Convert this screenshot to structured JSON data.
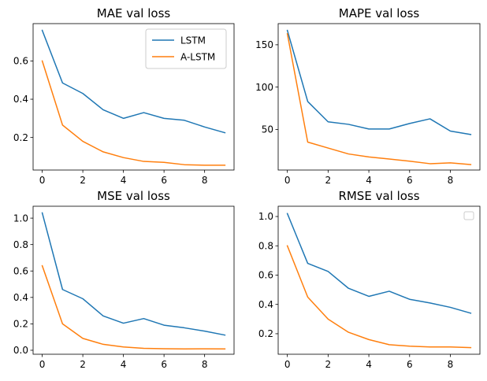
{
  "chart_data": [
    {
      "type": "line",
      "title": "MAE val loss",
      "x": [
        0,
        1,
        2,
        3,
        4,
        5,
        6,
        7,
        8,
        9
      ],
      "xlim": [
        -0.45,
        9.45
      ],
      "ylim": [
        0.03,
        0.795
      ],
      "xticks": [
        0,
        2,
        4,
        6,
        8
      ],
      "xtick_labels": [
        "0",
        "2",
        "4",
        "6",
        "8"
      ],
      "yticks": [
        0.2,
        0.4,
        0.6
      ],
      "ytick_labels": [
        "0.2",
        "0.4",
        "0.6"
      ],
      "series": [
        {
          "name": "LSTM",
          "color": "#1f77b4",
          "values": [
            0.76,
            0.485,
            0.43,
            0.345,
            0.3,
            0.33,
            0.3,
            0.29,
            0.255,
            0.225
          ]
        },
        {
          "name": "A-LSTM",
          "color": "#ff7f0e",
          "values": [
            0.6,
            0.265,
            0.18,
            0.125,
            0.095,
            0.075,
            0.07,
            0.058,
            0.055,
            0.055
          ]
        }
      ],
      "legend": {
        "placement": "top-right",
        "frame": true,
        "entries": [
          "LSTM",
          "A-LSTM"
        ]
      }
    },
    {
      "type": "line",
      "title": "MAPE val loss",
      "x": [
        0,
        1,
        2,
        3,
        4,
        5,
        6,
        7,
        8,
        9
      ],
      "xlim": [
        -0.45,
        9.45
      ],
      "ylim": [
        2,
        175
      ],
      "xticks": [
        0,
        2,
        4,
        6,
        8
      ],
      "xtick_labels": [
        "0",
        "2",
        "4",
        "6",
        "8"
      ],
      "yticks": [
        50,
        100,
        150
      ],
      "ytick_labels": [
        "50",
        "100",
        "150"
      ],
      "series": [
        {
          "name": "LSTM",
          "color": "#1f77b4",
          "values": [
            167,
            83,
            59,
            56,
            50.5,
            50.5,
            57,
            62.5,
            48,
            44
          ]
        },
        {
          "name": "A-LSTM",
          "color": "#ff7f0e",
          "values": [
            163,
            35,
            28,
            21,
            17.5,
            15,
            12.5,
            9.5,
            10.5,
            8.5
          ]
        }
      ],
      "legend": null
    },
    {
      "type": "line",
      "title": "MSE val loss",
      "x": [
        0,
        1,
        2,
        3,
        4,
        5,
        6,
        7,
        8,
        9
      ],
      "xlim": [
        -0.45,
        9.45
      ],
      "ylim": [
        -0.03,
        1.09
      ],
      "xticks": [
        0,
        2,
        4,
        6,
        8
      ],
      "xtick_labels": [
        "0",
        "2",
        "4",
        "6",
        "8"
      ],
      "yticks": [
        0.0,
        0.2,
        0.4,
        0.6,
        0.8,
        1.0
      ],
      "ytick_labels": [
        "0.0",
        "0.2",
        "0.4",
        "0.6",
        "0.8",
        "1.0"
      ],
      "series": [
        {
          "name": "LSTM",
          "color": "#1f77b4",
          "values": [
            1.04,
            0.46,
            0.39,
            0.26,
            0.205,
            0.24,
            0.19,
            0.17,
            0.145,
            0.115
          ]
        },
        {
          "name": "A-LSTM",
          "color": "#ff7f0e",
          "values": [
            0.64,
            0.2,
            0.09,
            0.045,
            0.025,
            0.015,
            0.012,
            0.01,
            0.011,
            0.01
          ]
        }
      ],
      "legend": null
    },
    {
      "type": "line",
      "title": "RMSE val loss",
      "x": [
        0,
        1,
        2,
        3,
        4,
        5,
        6,
        7,
        8,
        9
      ],
      "xlim": [
        -0.45,
        9.45
      ],
      "ylim": [
        0.06,
        1.07
      ],
      "xticks": [
        0,
        2,
        4,
        6,
        8
      ],
      "xtick_labels": [
        "0",
        "2",
        "4",
        "6",
        "8"
      ],
      "yticks": [
        0.2,
        0.4,
        0.6,
        0.8,
        1.0
      ],
      "ytick_labels": [
        "0.2",
        "0.4",
        "0.6",
        "0.8",
        "1.0"
      ],
      "series": [
        {
          "color": "#1f77b4",
          "values": [
            1.02,
            0.68,
            0.625,
            0.51,
            0.455,
            0.49,
            0.435,
            0.41,
            0.38,
            0.34
          ]
        },
        {
          "color": "#ff7f0e",
          "values": [
            0.8,
            0.45,
            0.3,
            0.21,
            0.16,
            0.125,
            0.115,
            0.11,
            0.11,
            0.105
          ]
        }
      ],
      "legend": {
        "placement": "top-right",
        "frame": true,
        "entries": []
      }
    }
  ]
}
